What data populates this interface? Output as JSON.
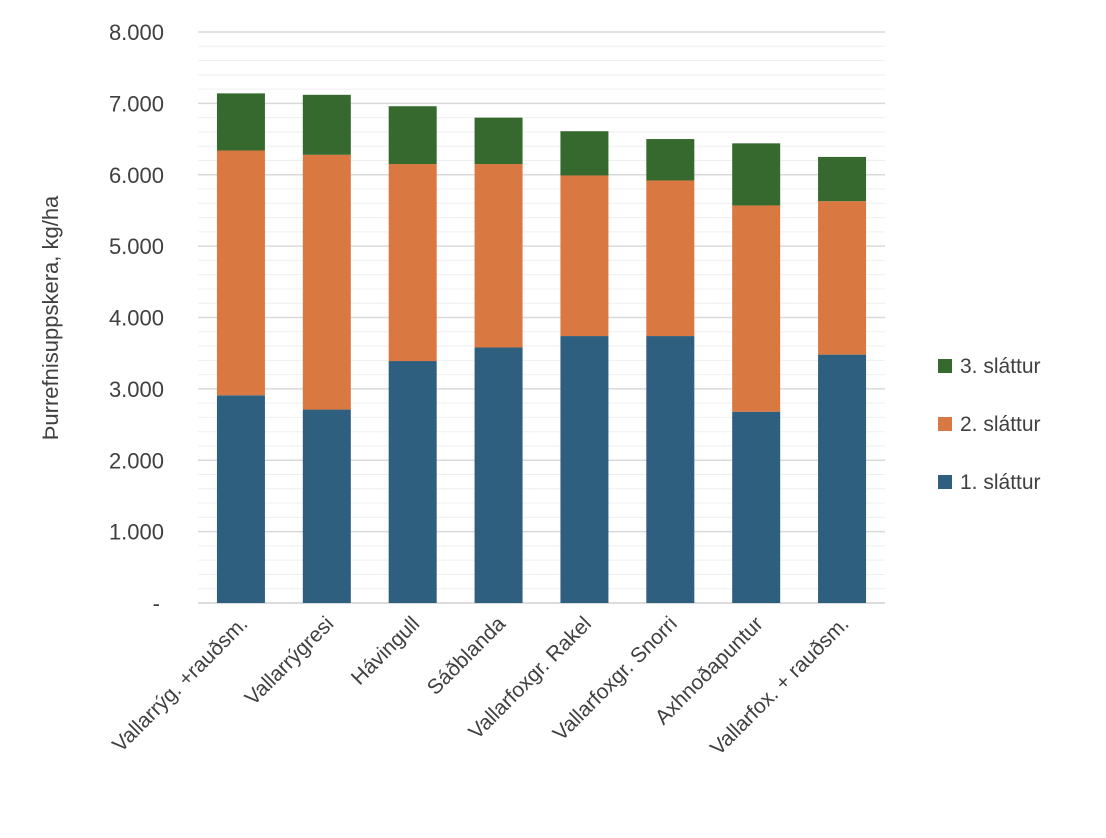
{
  "chart_data": {
    "type": "bar",
    "stacked": true,
    "title": "",
    "xlabel": "",
    "ylabel": "Þurrefnisuppskera, kg/ha",
    "ylim": [
      0,
      8000
    ],
    "yticks": [
      0,
      1000,
      2000,
      3000,
      4000,
      5000,
      6000,
      7000,
      8000
    ],
    "ytick_labels": [
      "-",
      "1.000",
      "2.000",
      "3.000",
      "4.000",
      "5.000",
      "6.000",
      "7.000",
      "8.000"
    ],
    "minor_grid_step": 200,
    "grid": true,
    "legend_position": "right",
    "categories": [
      "Vallarrýg. +rauðsm.",
      "Vallarrýgresi",
      "Hávingull",
      "Sáðblanda",
      "Vallarfoxgr. Rakel",
      "Vallarfoxgr. Snorri",
      "Axhnoðapuntur",
      "Vallarfox. + rauðsm."
    ],
    "series": [
      {
        "name": "1. sláttur",
        "color": "#2e5f7f",
        "values": [
          2910,
          2710,
          3390,
          3580,
          3740,
          3740,
          2680,
          3480
        ]
      },
      {
        "name": "2. sláttur",
        "color": "#d97841",
        "values": [
          3430,
          3570,
          2760,
          2570,
          2250,
          2180,
          2890,
          2150
        ]
      },
      {
        "name": "3. sláttur",
        "color": "#35692e",
        "values": [
          800,
          840,
          810,
          650,
          620,
          580,
          870,
          620
        ]
      }
    ],
    "legend_order": [
      "3. sláttur",
      "2. sláttur",
      "1. sláttur"
    ]
  }
}
